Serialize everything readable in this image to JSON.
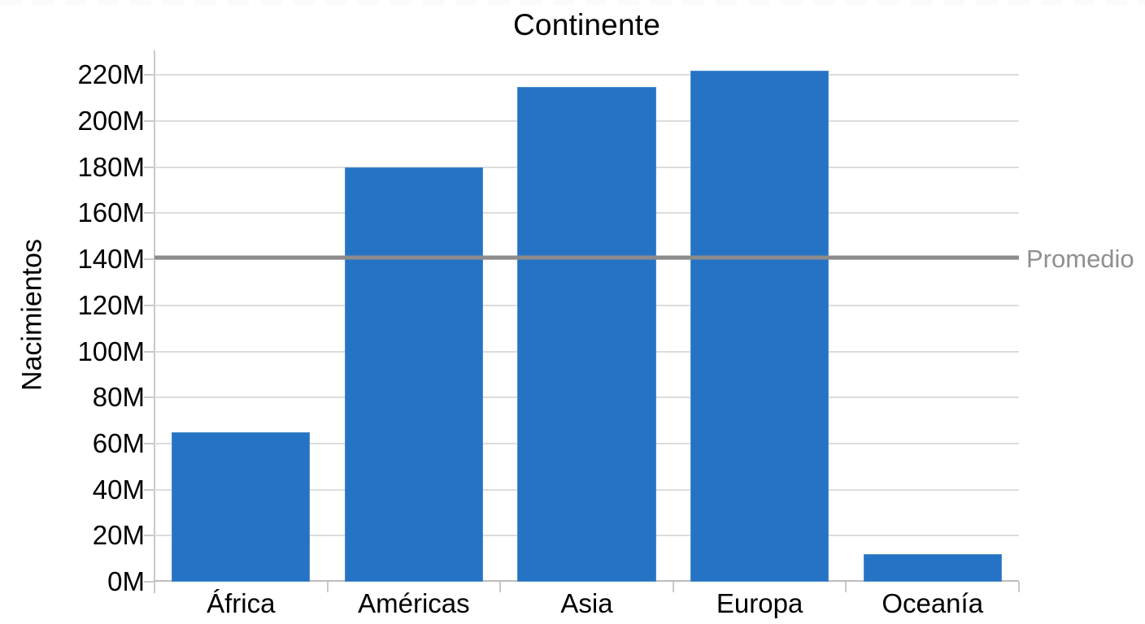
{
  "page": {
    "background": "#ffffff"
  },
  "chart_data": {
    "type": "bar",
    "title": "Continente",
    "ylabel": "Nacimientos",
    "xlabel": "",
    "categories": [
      "África",
      "Américas",
      "Asia",
      "Europa",
      "Oceanía"
    ],
    "values": [
      65,
      180,
      215,
      222,
      12
    ],
    "value_unit": "M",
    "ylim": [
      0,
      230
    ],
    "ytick_step": 20,
    "yticks": [
      "0M",
      "20M",
      "40M",
      "60M",
      "80M",
      "100M",
      "120M",
      "140M",
      "160M",
      "180M",
      "200M",
      "220M"
    ],
    "grid": true,
    "legend": "none",
    "bar_color": "#2573c4",
    "gridline_color": "#dcdcdc",
    "axis_color": "#c9c9c9",
    "text_color": "#000000",
    "reference_line": {
      "label": "Promedio",
      "value": 140,
      "color": "#8c8c8c",
      "label_color": "#8f8f8f"
    }
  }
}
